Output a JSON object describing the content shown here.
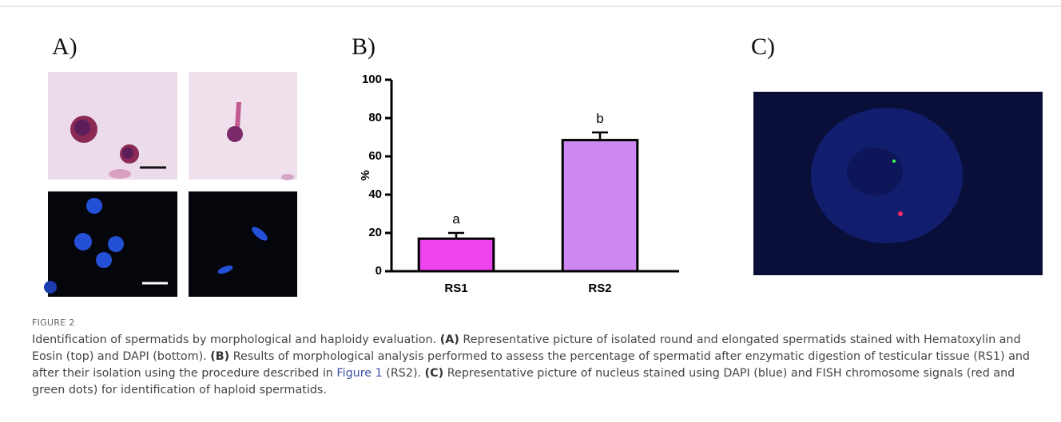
{
  "panels": {
    "a": "A)",
    "b": "B)",
    "c": "C)"
  },
  "chart_data": {
    "type": "bar",
    "categories": [
      "RS1",
      "RS2"
    ],
    "values": [
      17,
      68.5
    ],
    "errors": [
      3,
      4
    ],
    "annotations": [
      "a",
      "b"
    ],
    "colors": [
      "#ee44ee",
      "#cc88f0"
    ],
    "ylabel": "%",
    "ylim": [
      0,
      100
    ],
    "yticks": [
      0,
      20,
      40,
      60,
      80,
      100
    ]
  },
  "caption": {
    "label": "FIGURE 2",
    "parts": [
      "Identification of spermatids by morphological and haploidy evaluation. ",
      "(A)",
      " Representative picture of isolated round and elongated spermatids stained with Hematoxylin and Eosin (top) and DAPI (bottom). ",
      "(B)",
      " Results of morphological analysis performed to assess the percentage of spermatid after enzymatic digestion of testicular tissue (RS1) and after their isolation using the procedure described in ",
      "Figure 1",
      " (RS2). ",
      "(C)",
      " Representative picture of nucleus stained using DAPI (blue) and FISH chromosome signals (red and green dots) for identification of haploid spermatids."
    ]
  }
}
